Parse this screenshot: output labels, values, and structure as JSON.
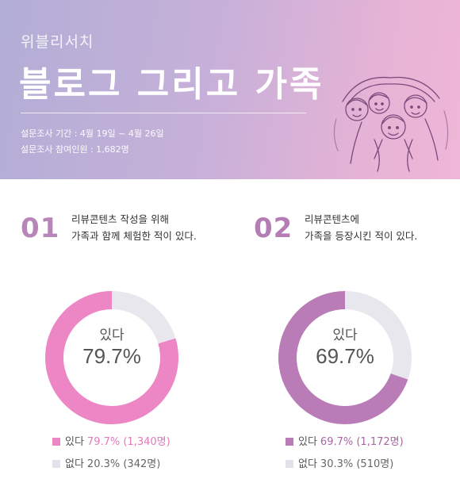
{
  "header": {
    "brand": "위블리서치",
    "title": "블로그 그리고 가족",
    "period": "설문조사 기간 : 4월 19일 ~ 4월 26일",
    "participants": "설문조사 참여인원 : 1,682명",
    "illustration_icon": "family-drawing-icon"
  },
  "colors": {
    "q1_main": "#ec86c4",
    "q2_main": "#b97cb7",
    "remainder": "#e9e7ee",
    "number_accent": "#b785b8"
  },
  "questions": [
    {
      "number": "01",
      "line1": "리뷰콘텐츠 작성을 위해",
      "line2": "가족과 함께 체험한 적이 있다.",
      "center_label": "있다",
      "center_value": "79.7%",
      "yes_label": "있다",
      "yes_detail": "79.7% (1,340명)",
      "no_label": "없다",
      "no_detail": "20.3% (342명)"
    },
    {
      "number": "02",
      "line1": "리뷰콘텐츠에",
      "line2": "가족을 등장시킨 적이 있다.",
      "center_label": "있다",
      "center_value": "69.7%",
      "yes_label": "있다",
      "yes_detail": "69.7% (1,172명)",
      "no_label": "없다",
      "no_detail": "30.3% (510명)"
    }
  ],
  "chart_data": [
    {
      "type": "pie",
      "categories": [
        "있다",
        "없다"
      ],
      "values": [
        79.7,
        20.3
      ],
      "counts": [
        1340,
        342
      ],
      "unit": "%"
    },
    {
      "type": "pie",
      "categories": [
        "있다",
        "없다"
      ],
      "values": [
        69.7,
        30.3
      ],
      "counts": [
        1172,
        510
      ],
      "unit": "%"
    }
  ]
}
